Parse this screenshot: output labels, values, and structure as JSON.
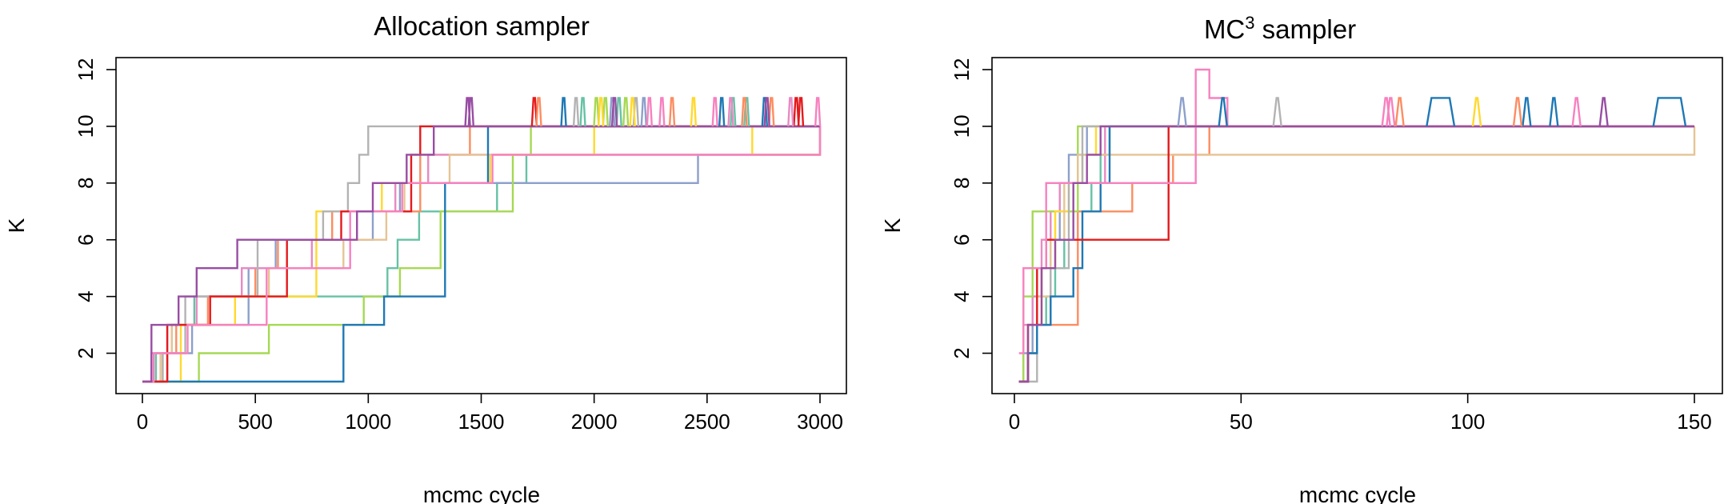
{
  "chart_data": [
    {
      "type": "line",
      "title": "Allocation sampler",
      "xlabel": "mcmc cycle",
      "ylabel": "K",
      "xlim": [
        0,
        3000
      ],
      "ylim": [
        1,
        12
      ],
      "x_ticks": [
        "0",
        "500",
        "1000",
        "1500",
        "2000",
        "2500",
        "3000"
      ],
      "y_ticks": [
        "2",
        "4",
        "6",
        "8",
        "10",
        "12"
      ],
      "grid": false,
      "legend": "none",
      "series": [
        {
          "color": "#66c2a5",
          "x": [
            0,
            60,
            130,
            230,
            720,
            1085,
            1130,
            1225,
            1570,
            1700,
            3000
          ],
          "y": [
            1,
            2,
            3,
            4,
            4,
            5,
            6,
            7,
            8,
            9,
            10
          ]
        },
        {
          "color": "#fc8d62",
          "x": [
            0,
            90,
            150,
            290,
            500,
            600,
            840,
            1230,
            1450,
            3000
          ],
          "y": [
            1,
            2,
            3,
            4,
            5,
            6,
            7,
            9,
            10,
            10
          ]
        },
        {
          "color": "#8da0cb",
          "x": [
            0,
            110,
            220,
            470,
            590,
            1020,
            1140,
            2460,
            3000
          ],
          "y": [
            1,
            2,
            3,
            5,
            6,
            7,
            8,
            9,
            9
          ]
        },
        {
          "color": "#e78ac3",
          "x": [
            0,
            40,
            110,
            240,
            440,
            750,
            950,
            1120,
            1265,
            3000
          ],
          "y": [
            1,
            2,
            3,
            4,
            5,
            6,
            7,
            8,
            9,
            10
          ]
        },
        {
          "color": "#a6d854",
          "x": [
            0,
            250,
            560,
            980,
            1140,
            1320,
            1640,
            1720,
            3000
          ],
          "y": [
            1,
            2,
            3,
            4,
            5,
            7,
            9,
            10,
            10
          ]
        },
        {
          "color": "#ffd92f",
          "x": [
            0,
            170,
            410,
            770,
            1060,
            1540,
            2000,
            2700,
            3000
          ],
          "y": [
            1,
            3,
            4,
            7,
            8,
            9,
            10,
            9,
            9
          ]
        },
        {
          "color": "#e5c494",
          "x": [
            0,
            80,
            130,
            300,
            560,
            890,
            1080,
            1160,
            1360,
            3000
          ],
          "y": [
            1,
            2,
            3,
            4,
            5,
            6,
            7,
            8,
            9,
            10
          ]
        },
        {
          "color": "#b3b3b3",
          "x": [
            0,
            90,
            190,
            510,
            800,
            910,
            960,
            1000,
            3000
          ],
          "y": [
            1,
            2,
            4,
            6,
            7,
            8,
            9,
            10,
            10
          ]
        },
        {
          "color": "#1f78b4",
          "x": [
            0,
            100,
            200,
            560,
            890,
            1070,
            1340,
            1530,
            3000
          ],
          "y": [
            1,
            1,
            1,
            1,
            3,
            4,
            8,
            10,
            10
          ]
        },
        {
          "color": "#e41a1c",
          "x": [
            0,
            110,
            170,
            300,
            640,
            880,
            1060,
            1190,
            1230,
            3000
          ],
          "y": [
            1,
            3,
            3,
            4,
            6,
            7,
            7,
            9,
            10,
            10
          ]
        },
        {
          "color": "#f781bf",
          "x": [
            0,
            50,
            200,
            550,
            920,
            1150,
            1550,
            1620,
            2360,
            3000
          ],
          "y": [
            1,
            2,
            3,
            5,
            7,
            8,
            9,
            9,
            9,
            10
          ]
        },
        {
          "color": "#984ea3",
          "x": [
            0,
            40,
            160,
            240,
            420,
            950,
            1020,
            1170,
            1290,
            3000
          ],
          "y": [
            1,
            3,
            4,
            5,
            6,
            7,
            8,
            9,
            10,
            10
          ]
        }
      ],
      "spikes": [
        {
          "color": "#984ea3",
          "x": [
            1440,
            1455
          ]
        },
        {
          "color": "#e41a1c",
          "x": [
            1735,
            2895,
            2915
          ]
        },
        {
          "color": "#1f78b4",
          "x": [
            1865,
            2565,
            2755
          ]
        },
        {
          "color": "#66c2a5",
          "x": [
            1950,
            2110,
            2615,
            2675
          ]
        },
        {
          "color": "#b3b3b3",
          "x": [
            1920,
            2185
          ]
        },
        {
          "color": "#a6d854",
          "x": [
            2010,
            2050,
            2140
          ]
        },
        {
          "color": "#ffd92f",
          "x": [
            2030,
            2170,
            2440
          ]
        },
        {
          "color": "#fc8d62",
          "x": [
            1755,
            2345,
            2665,
            2785
          ]
        },
        {
          "color": "#8da0cb",
          "x": [
            2080,
            2220
          ]
        },
        {
          "color": "#f781bf",
          "x": [
            2245,
            2300,
            2535,
            2990
          ]
        },
        {
          "color": "#e78ac3",
          "x": [
            2605,
            2870
          ]
        },
        {
          "color": "#984ea3",
          "x": [
            2090,
            2765
          ]
        }
      ]
    },
    {
      "type": "line",
      "title": "MC",
      "title_superscript": "3",
      "title_suffix": " sampler",
      "xlabel": "mcmc cycle",
      "ylabel": "K",
      "xlim": [
        0,
        150
      ],
      "ylim": [
        1,
        12
      ],
      "x_ticks": [
        "0",
        "50",
        "100",
        "150"
      ],
      "y_ticks": [
        "2",
        "4",
        "6",
        "8",
        "10",
        "12"
      ],
      "grid": false,
      "legend": "none",
      "series": [
        {
          "color": "#66c2a5",
          "x": [
            1,
            3,
            5,
            7,
            9,
            11,
            14,
            17,
            19,
            21,
            40,
            150
          ],
          "y": [
            1,
            2,
            3,
            4,
            5,
            6,
            7,
            8,
            9,
            10,
            10,
            10
          ]
        },
        {
          "color": "#fc8d62",
          "x": [
            1,
            3,
            5,
            14,
            26,
            35,
            43,
            150
          ],
          "y": [
            1,
            2,
            3,
            7,
            8,
            9,
            10,
            10
          ]
        },
        {
          "color": "#8da0cb",
          "x": [
            1,
            2,
            4,
            6,
            8,
            10,
            12,
            14,
            16,
            150
          ],
          "y": [
            1,
            2,
            4,
            5,
            6,
            8,
            9,
            9,
            10,
            10
          ]
        },
        {
          "color": "#e78ac3",
          "x": [
            1,
            2,
            4,
            6,
            8,
            10,
            20,
            150
          ],
          "y": [
            1,
            3,
            4,
            6,
            7,
            8,
            10,
            10
          ]
        },
        {
          "color": "#a6d854",
          "x": [
            1,
            2,
            4,
            12,
            14,
            150
          ],
          "y": [
            1,
            4,
            7,
            7,
            10,
            10
          ]
        },
        {
          "color": "#ffd92f",
          "x": [
            1,
            3,
            6,
            9,
            12,
            15,
            18,
            150
          ],
          "y": [
            1,
            3,
            5,
            7,
            8,
            9,
            10,
            10
          ]
        },
        {
          "color": "#e5c494",
          "x": [
            1,
            3,
            5,
            8,
            11,
            14,
            150
          ],
          "y": [
            1,
            2,
            4,
            6,
            8,
            9,
            10
          ]
        },
        {
          "color": "#b3b3b3",
          "x": [
            1,
            5,
            8,
            12,
            15,
            150
          ],
          "y": [
            1,
            3,
            5,
            8,
            10,
            10
          ]
        },
        {
          "color": "#1f78b4",
          "x": [
            1,
            3,
            5,
            8,
            11,
            13,
            15,
            19,
            21,
            150
          ],
          "y": [
            1,
            2,
            3,
            4,
            4,
            5,
            7,
            8,
            10,
            10
          ]
        },
        {
          "color": "#e41a1c",
          "x": [
            1,
            3,
            5,
            7,
            10,
            32,
            34,
            150
          ],
          "y": [
            1,
            3,
            5,
            6,
            6,
            6,
            10,
            10
          ]
        },
        {
          "color": "#f781bf",
          "x": [
            1,
            2,
            4,
            7,
            10,
            39,
            40,
            42,
            43,
            47,
            150
          ],
          "y": [
            2,
            5,
            5,
            8,
            8,
            8,
            12,
            12,
            11,
            10,
            10
          ]
        },
        {
          "color": "#984ea3",
          "x": [
            1,
            3,
            6,
            9,
            13,
            16,
            19,
            150
          ],
          "y": [
            1,
            3,
            5,
            6,
            8,
            9,
            10,
            10
          ]
        }
      ],
      "spikes": [
        {
          "color": "#8da0cb",
          "x": [
            37
          ]
        },
        {
          "color": "#1f78b4",
          "x": [
            46,
            113,
            119
          ]
        },
        {
          "color": "#b3b3b3",
          "x": [
            58
          ]
        },
        {
          "color": "#f781bf",
          "x": [
            82,
            83,
            124
          ]
        },
        {
          "color": "#fc8d62",
          "x": [
            85,
            111
          ]
        },
        {
          "color": "#ffd92f",
          "x": [
            102
          ]
        },
        {
          "color": "#984ea3",
          "x": [
            130
          ]
        }
      ],
      "plateaus": [
        {
          "color": "#1f78b4",
          "x": [
            92,
            96
          ]
        },
        {
          "color": "#1f78b4",
          "x": [
            142,
            147
          ]
        }
      ]
    }
  ]
}
